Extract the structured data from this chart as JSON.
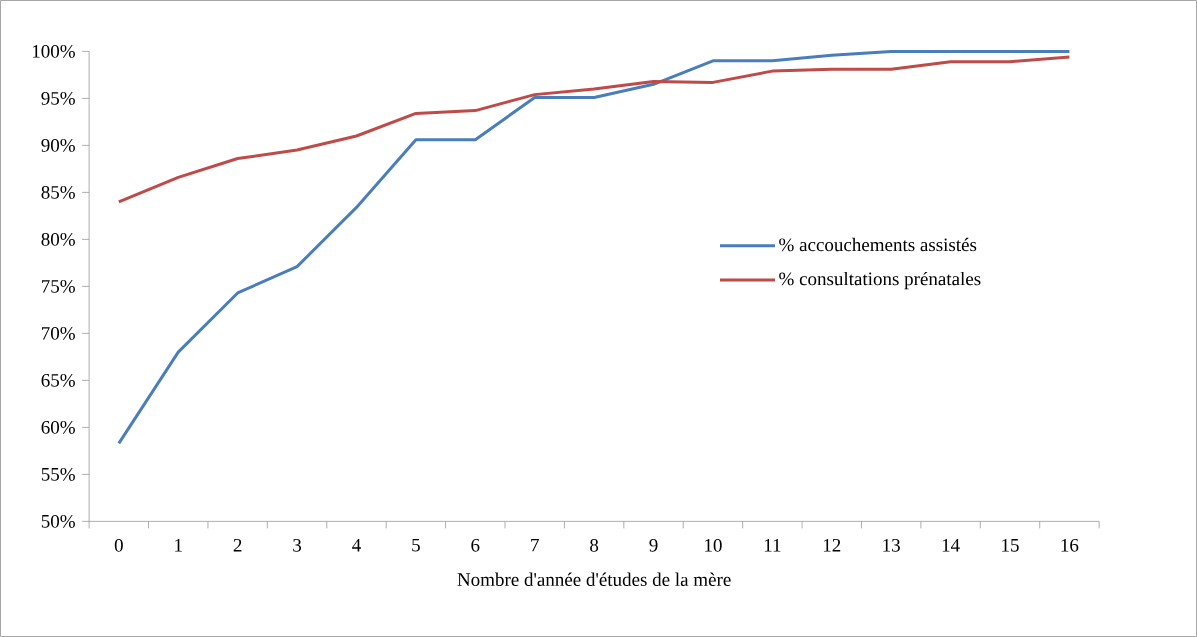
{
  "chart_data": {
    "type": "line",
    "xlabel": "Nombre d'année d'études de la mère",
    "categories": [
      "0",
      "1",
      "2",
      "3",
      "4",
      "5",
      "6",
      "7",
      "8",
      "9",
      "10",
      "11",
      "12",
      "13",
      "14",
      "15",
      "16"
    ],
    "series": [
      {
        "name": "% accouchements assistés",
        "color": "#4a7ebb",
        "values": [
          58.3,
          68,
          74.3,
          77.1,
          83.4,
          90.6,
          90.6,
          95.1,
          95.1,
          96.5,
          99,
          99,
          99.6,
          100,
          100,
          100,
          100
        ]
      },
      {
        "name": "% consultations prénatales",
        "color": "#be4b48",
        "values": [
          84,
          86.6,
          88.6,
          89.5,
          91,
          93.4,
          93.7,
          95.4,
          96,
          96.8,
          96.7,
          97.9,
          98.1,
          98.1,
          98.9,
          98.9,
          99.4
        ]
      }
    ],
    "ylim": [
      50,
      100
    ],
    "yticks": [
      {
        "value": 50,
        "label": "50%"
      },
      {
        "value": 55,
        "label": "55%"
      },
      {
        "value": 60,
        "label": "60%"
      },
      {
        "value": 65,
        "label": "65%"
      },
      {
        "value": 70,
        "label": "70%"
      },
      {
        "value": 75,
        "label": "75%"
      },
      {
        "value": 80,
        "label": "80%"
      },
      {
        "value": 85,
        "label": "85%"
      },
      {
        "value": 90,
        "label": "90%"
      },
      {
        "value": 95,
        "label": "95%"
      },
      {
        "value": 100,
        "label": "100%"
      }
    ],
    "grid": false,
    "legend": "right",
    "marker": "none",
    "line_style": "solid"
  }
}
